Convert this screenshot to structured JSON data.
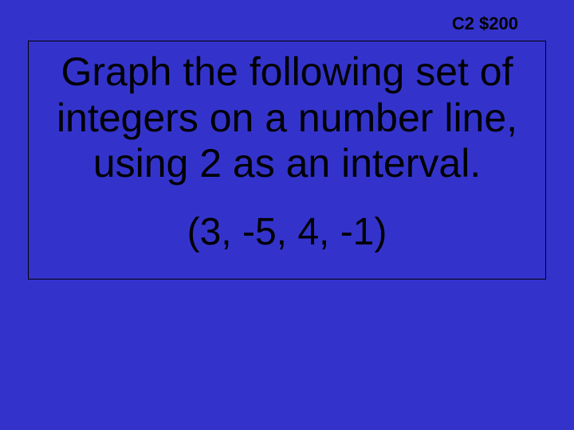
{
  "slide": {
    "background_color": "#3333cc",
    "text_color": "#000000",
    "header": {
      "label": "C2 $200",
      "fontsize": 22,
      "font_weight": "bold"
    },
    "content_box": {
      "border_color": "#000000",
      "question": {
        "text": "Graph the following set of integers on a number line, using 2 as an interval.",
        "fontsize": 50
      },
      "values": {
        "text": "(3, -5, 4, -1)",
        "fontsize": 48
      }
    }
  }
}
